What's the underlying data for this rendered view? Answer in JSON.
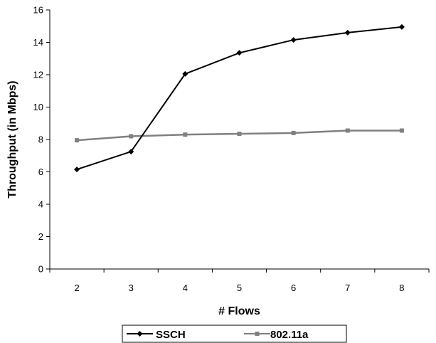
{
  "chart_data": {
    "type": "line",
    "title": "",
    "xlabel": "# Flows",
    "ylabel": "Throughput (in Mbps)",
    "x": [
      2,
      3,
      4,
      5,
      6,
      7,
      8
    ],
    "ylim": [
      0,
      16
    ],
    "yticks": [
      0,
      2,
      4,
      6,
      8,
      10,
      12,
      14,
      16
    ],
    "grid": false,
    "legend_position": "bottom",
    "series": [
      {
        "name": "SSCH",
        "values": [
          6.15,
          7.25,
          12.05,
          13.35,
          14.15,
          14.6,
          14.95
        ],
        "color": "#000000",
        "marker": "diamond"
      },
      {
        "name": "802.11a",
        "values": [
          7.95,
          8.2,
          8.3,
          8.35,
          8.4,
          8.55,
          8.55
        ],
        "color": "#808080",
        "marker": "square"
      }
    ]
  }
}
